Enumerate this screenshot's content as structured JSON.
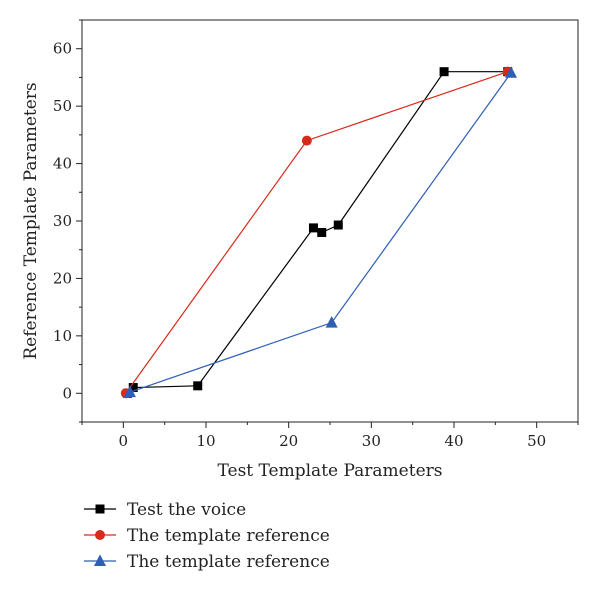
{
  "chart_data": {
    "type": "line",
    "title": "",
    "xlabel": "Test Template Parameters",
    "ylabel": "Reference Template Parameters",
    "xlim": [
      -5,
      55
    ],
    "ylim": [
      -5,
      65
    ],
    "xticks": [
      0,
      10,
      20,
      30,
      40,
      50
    ],
    "yticks": [
      0,
      10,
      20,
      30,
      40,
      50,
      60
    ],
    "grid": false,
    "legend_position": "bottom-left (below plot)",
    "series": [
      {
        "name": "Test the voice",
        "color": "#000000",
        "marker": "square",
        "x": [
          0.5,
          1.2,
          9,
          23,
          24,
          26,
          38.8,
          46.5
        ],
        "y": [
          0,
          1,
          1.3,
          28.8,
          28,
          29.3,
          56,
          56
        ]
      },
      {
        "name": "The template reference",
        "color": "#d62a1a",
        "marker": "circle",
        "x": [
          0.3,
          22.2,
          46.5
        ],
        "y": [
          0,
          44,
          56
        ]
      },
      {
        "name": "The template reference",
        "color": "#2f5fb5",
        "marker": "triangle",
        "x": [
          0.8,
          25.2,
          46.9
        ],
        "y": [
          0.2,
          12.3,
          55.8
        ]
      }
    ]
  }
}
